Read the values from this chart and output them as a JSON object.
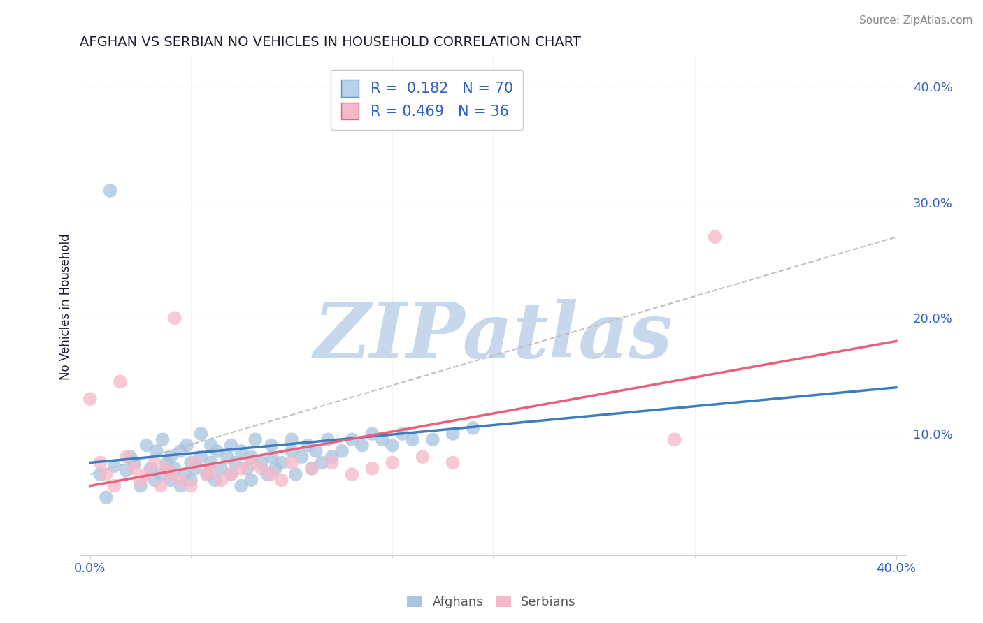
{
  "title": "AFGHAN VS SERBIAN NO VEHICLES IN HOUSEHOLD CORRELATION CHART",
  "source": "Source: ZipAtlas.com",
  "ylabel": "No Vehicles in Household",
  "xlim": [
    -0.005,
    0.405
  ],
  "ylim": [
    -0.005,
    0.425
  ],
  "xticks": [
    0.0,
    0.4
  ],
  "xticklabels": [
    "0.0%",
    "40.0%"
  ],
  "yticks": [
    0.0,
    0.1,
    0.2,
    0.3,
    0.4
  ],
  "yticklabels": [
    "",
    "10.0%",
    "20.0%",
    "30.0%",
    "40.0%"
  ],
  "afghan_fill_color": "#a8c4e0",
  "serbian_fill_color": "#f4b8c8",
  "afghan_line_color": "#3b7dbf",
  "serbian_line_color": "#e8607a",
  "trend_line_color": "#c0c0c0",
  "legend_patch_afghan": "#b8d0ea",
  "legend_patch_serbian": "#f4b8c8",
  "legend_patch_edge_afghan": "#6090c8",
  "legend_patch_edge_serbian": "#e8607a",
  "legend_R_afghan": "0.182",
  "legend_N_afghan": "70",
  "legend_R_serbian": "0.469",
  "legend_N_serbian": "36",
  "legend_text_black": "#333333",
  "legend_text_blue": "#3060c0",
  "watermark_text": "ZIPatlas",
  "watermark_color": "#c8d8ec",
  "grid_color": "#d0d0d0",
  "title_color": "#1a1a2e",
  "axis_label_color": "#1a1a2e",
  "tick_color": "#3060c0",
  "source_color": "#888888",
  "afghan_scatter_x": [
    0.005,
    0.008,
    0.012,
    0.018,
    0.02,
    0.022,
    0.025,
    0.028,
    0.03,
    0.032,
    0.033,
    0.035,
    0.036,
    0.038,
    0.04,
    0.04,
    0.042,
    0.045,
    0.045,
    0.047,
    0.048,
    0.05,
    0.05,
    0.052,
    0.055,
    0.055,
    0.058,
    0.06,
    0.06,
    0.062,
    0.063,
    0.065,
    0.068,
    0.07,
    0.07,
    0.072,
    0.075,
    0.075,
    0.078,
    0.08,
    0.08,
    0.082,
    0.085,
    0.088,
    0.09,
    0.09,
    0.092,
    0.095,
    0.1,
    0.1,
    0.102,
    0.105,
    0.108,
    0.11,
    0.112,
    0.115,
    0.118,
    0.12,
    0.125,
    0.13,
    0.135,
    0.14,
    0.145,
    0.15,
    0.155,
    0.16,
    0.17,
    0.18,
    0.19,
    0.01
  ],
  "afghan_scatter_y": [
    0.065,
    0.045,
    0.072,
    0.068,
    0.08,
    0.075,
    0.055,
    0.09,
    0.07,
    0.06,
    0.085,
    0.065,
    0.095,
    0.075,
    0.06,
    0.08,
    0.07,
    0.055,
    0.085,
    0.065,
    0.09,
    0.075,
    0.06,
    0.07,
    0.08,
    0.1,
    0.065,
    0.075,
    0.09,
    0.06,
    0.085,
    0.07,
    0.08,
    0.065,
    0.09,
    0.075,
    0.055,
    0.085,
    0.07,
    0.06,
    0.08,
    0.095,
    0.075,
    0.065,
    0.08,
    0.09,
    0.07,
    0.075,
    0.085,
    0.095,
    0.065,
    0.08,
    0.09,
    0.07,
    0.085,
    0.075,
    0.095,
    0.08,
    0.085,
    0.095,
    0.09,
    0.1,
    0.095,
    0.09,
    0.1,
    0.095,
    0.095,
    0.1,
    0.105,
    0.31
  ],
  "serbian_scatter_x": [
    0.005,
    0.008,
    0.012,
    0.018,
    0.022,
    0.025,
    0.028,
    0.032,
    0.035,
    0.038,
    0.04,
    0.045,
    0.05,
    0.052,
    0.058,
    0.06,
    0.065,
    0.07,
    0.075,
    0.08,
    0.085,
    0.09,
    0.095,
    0.1,
    0.11,
    0.12,
    0.13,
    0.14,
    0.15,
    0.165,
    0.18,
    0.29,
    0.31,
    0.0,
    0.015,
    0.042
  ],
  "serbian_scatter_y": [
    0.075,
    0.065,
    0.055,
    0.08,
    0.07,
    0.06,
    0.065,
    0.075,
    0.055,
    0.07,
    0.065,
    0.06,
    0.055,
    0.075,
    0.065,
    0.07,
    0.06,
    0.065,
    0.07,
    0.075,
    0.07,
    0.065,
    0.06,
    0.075,
    0.07,
    0.075,
    0.065,
    0.07,
    0.075,
    0.08,
    0.075,
    0.095,
    0.27,
    0.13,
    0.145,
    0.2
  ],
  "afghan_trend_x": [
    0.0,
    0.4
  ],
  "afghan_trend_y": [
    0.075,
    0.14
  ],
  "serbian_trend_x": [
    0.0,
    0.4
  ],
  "serbian_trend_y": [
    0.055,
    0.18
  ],
  "combined_trend_x": [
    0.0,
    0.4
  ],
  "combined_trend_y": [
    0.065,
    0.27
  ]
}
